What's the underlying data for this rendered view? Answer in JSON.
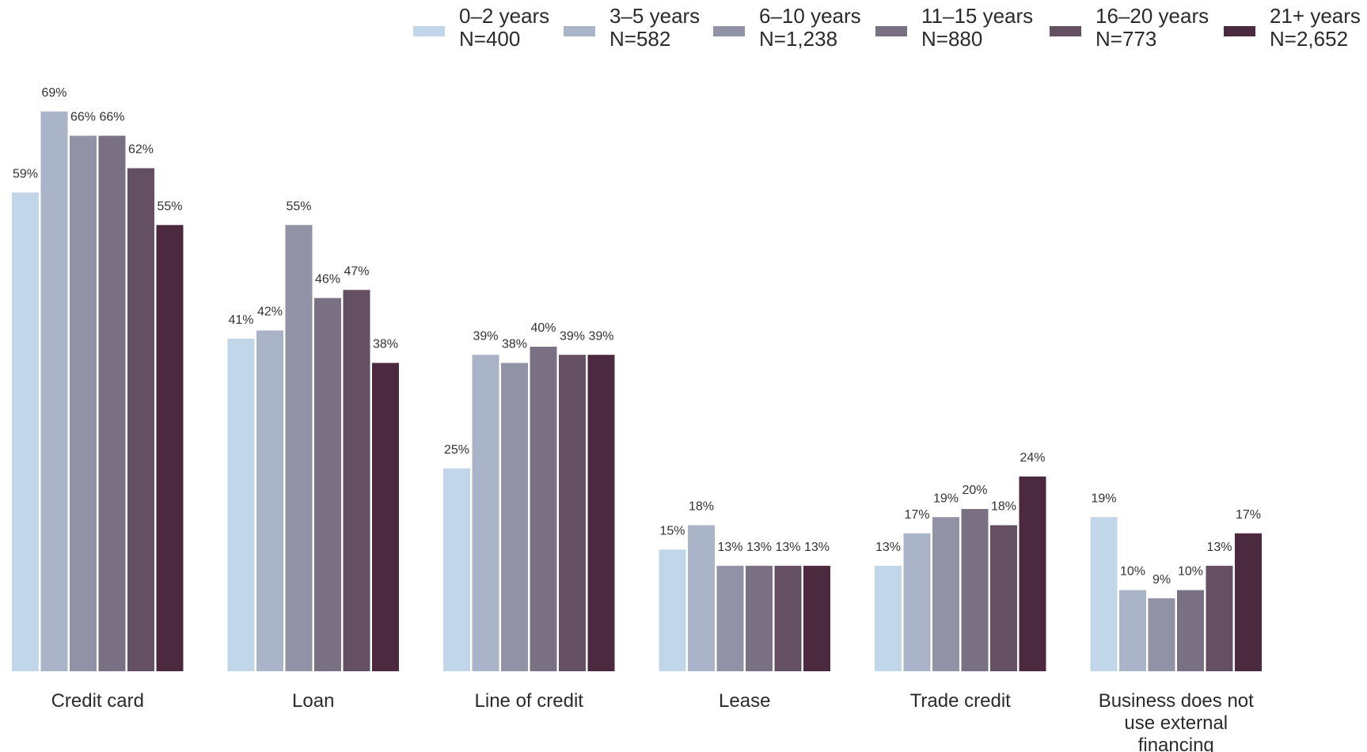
{
  "chart_data": {
    "type": "bar",
    "categories": [
      [
        "Credit card"
      ],
      [
        "Loan"
      ],
      [
        "Line of credit"
      ],
      [
        "Lease"
      ],
      [
        "Trade credit"
      ],
      [
        "Business does not",
        "use external",
        "financing"
      ]
    ],
    "series": [
      {
        "name": [
          "0–2 years",
          "N=400"
        ],
        "color": "#c2d6ea",
        "values": [
          59,
          41,
          25,
          15,
          13,
          19
        ]
      },
      {
        "name": [
          "3–5 years",
          "N=582"
        ],
        "color": "#a9b4c8",
        "values": [
          69,
          42,
          39,
          18,
          17,
          10
        ]
      },
      {
        "name": [
          "6–10 years",
          "N=1,238"
        ],
        "color": "#9292a6",
        "values": [
          66,
          55,
          38,
          13,
          19,
          9
        ]
      },
      {
        "name": [
          "11–15 years",
          "N=880"
        ],
        "color": "#7a7083",
        "values": [
          66,
          46,
          40,
          13,
          20,
          10
        ]
      },
      {
        "name": [
          "16–20 years",
          "N=773"
        ],
        "color": "#644f63",
        "values": [
          62,
          47,
          39,
          13,
          18,
          13
        ]
      },
      {
        "name": [
          "21+ years",
          "N=2,652"
        ],
        "color": "#4b2a40",
        "values": [
          55,
          38,
          39,
          13,
          24,
          17
        ]
      }
    ],
    "value_suffix": "%",
    "ylim": [
      0,
      100
    ],
    "grid": false,
    "legend_position": "top-right",
    "title": "",
    "xlabel": "",
    "ylabel": ""
  }
}
